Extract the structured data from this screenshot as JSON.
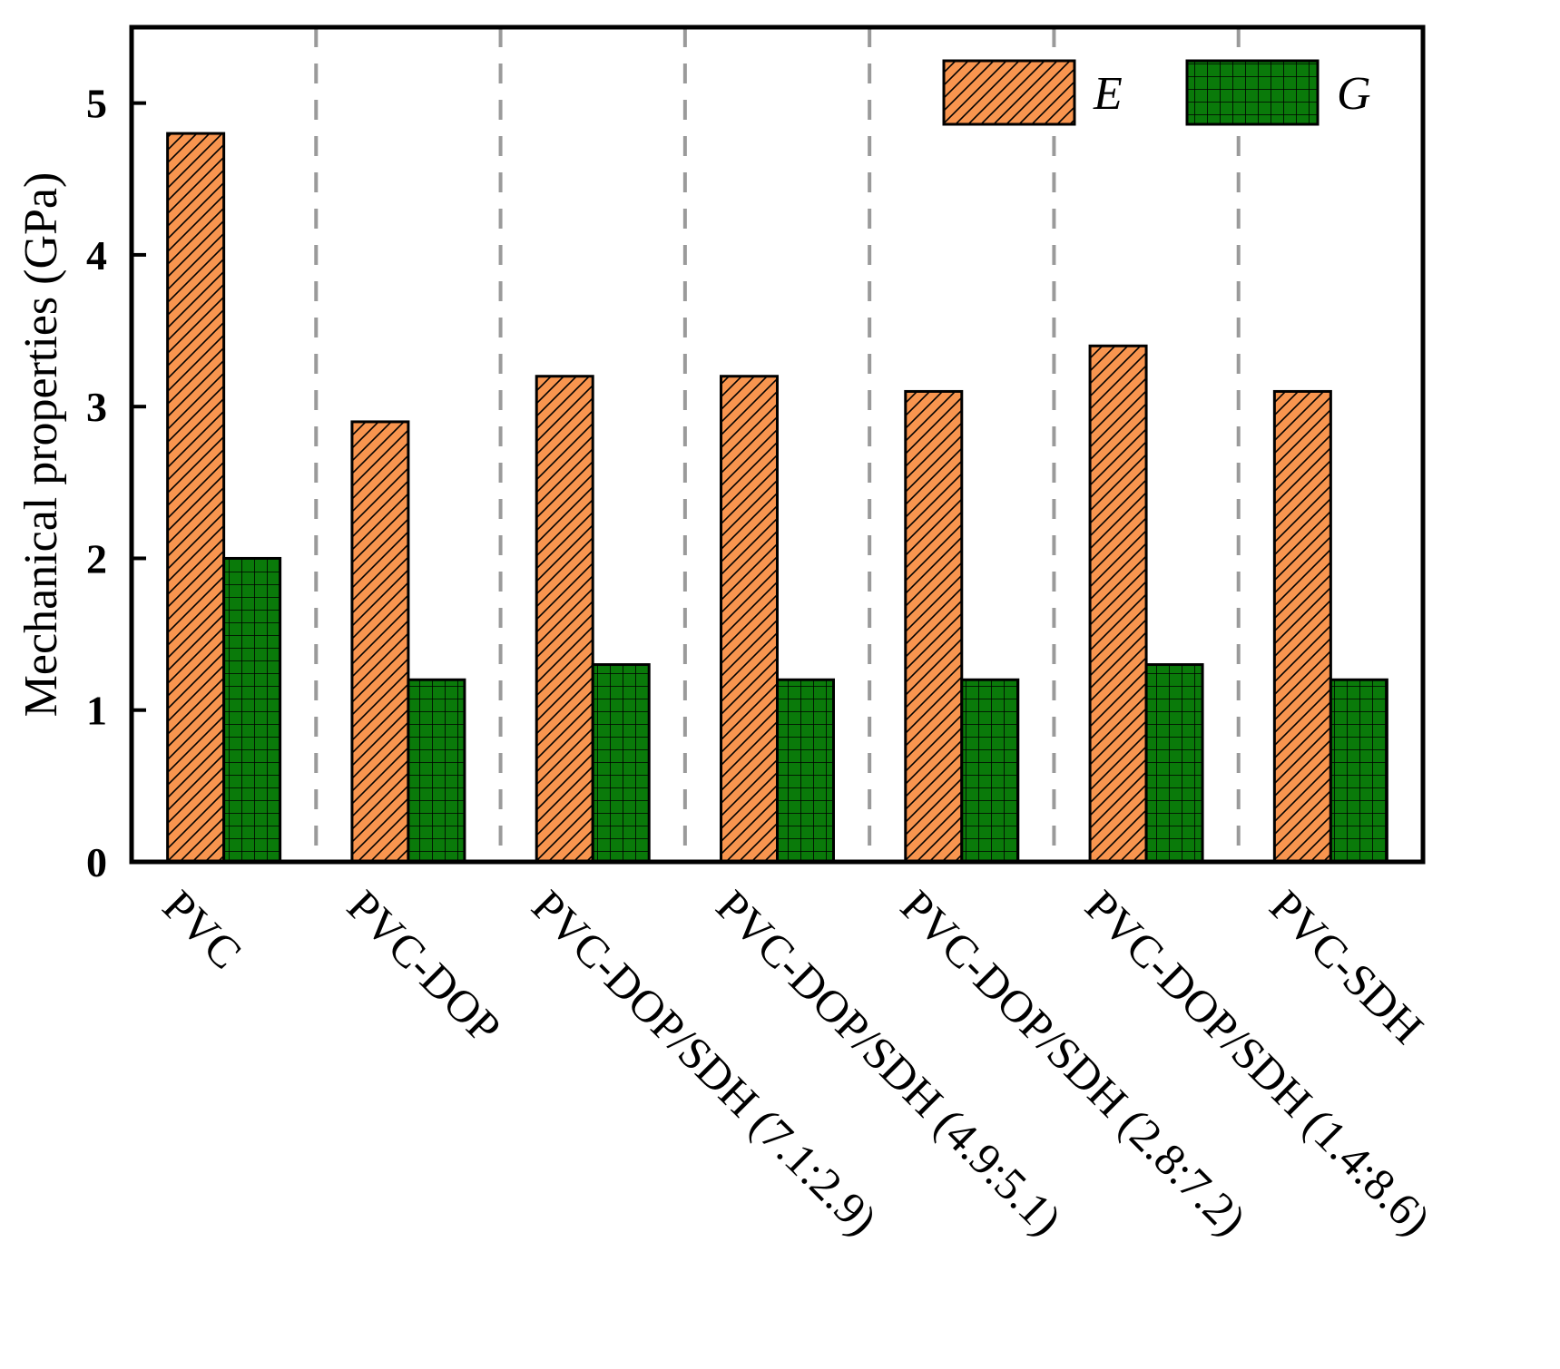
{
  "chart_data": {
    "type": "bar",
    "title": "",
    "xlabel": "",
    "ylabel": "Mechanical properties (GPa)",
    "ylim": [
      0,
      5.5
    ],
    "yticks": [
      0,
      1,
      2,
      3,
      4,
      5
    ],
    "grid": false,
    "separators": "dashed vertical lines between groups",
    "legend_position": "top-right",
    "categories": [
      "PVC",
      "PVC-DOP",
      "PVC-DOP/SDH (7.1:2.9)",
      "PVC-DOP/SDH (4.9:5.1)",
      "PVC-DOP/SDH (2.8:7.2)",
      "PVC-DOP/SDH (1.4:8.6)",
      "PVC-SDH"
    ],
    "series": [
      {
        "name": "E",
        "color": "#F8954F",
        "pattern": "diagonal hatch",
        "values": [
          4.8,
          2.9,
          3.2,
          3.2,
          3.1,
          3.4,
          3.1
        ]
      },
      {
        "name": "G",
        "color": "#0A7A0A",
        "pattern": "grid",
        "values": [
          2.0,
          1.2,
          1.3,
          1.2,
          1.2,
          1.3,
          1.2
        ]
      }
    ]
  }
}
